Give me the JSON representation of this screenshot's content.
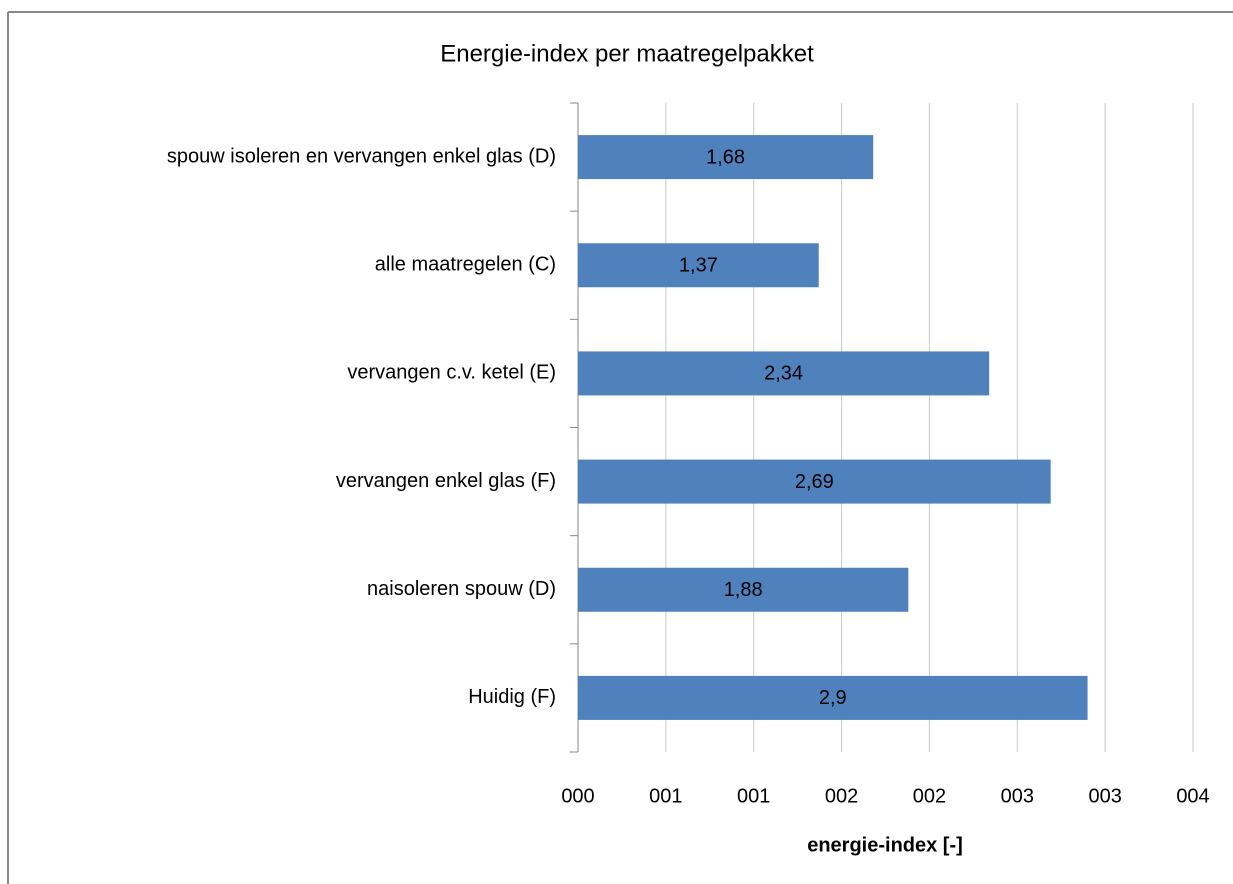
{
  "chart_data": {
    "type": "barh",
    "title": "Energie-index per maatregelpakket",
    "x_label": "energie-index [-]",
    "categories": [
      "spouw isoleren en vervangen enkel glas (D)",
      "alle maatregelen (C)",
      "vervangen c.v. ketel (E)",
      "vervangen enkel glas (F)",
      "naisoleren spouw (D)",
      "Huidig (F)"
    ],
    "values": [
      1.68,
      1.37,
      2.34,
      2.69,
      1.88,
      2.9
    ],
    "value_labels": [
      "1,68",
      "1,37",
      "2,34",
      "2,69",
      "1,88",
      "2,9"
    ],
    "color": "#4f81bd",
    "xlim": [
      0,
      3.5
    ],
    "xticks": [
      {
        "value": 0,
        "label": "000"
      },
      {
        "value": 0.5,
        "label": "001"
      },
      {
        "value": 1,
        "label": "001"
      },
      {
        "value": 1.5,
        "label": "002"
      },
      {
        "value": 2,
        "label": "002"
      },
      {
        "value": 2.5,
        "label": "003"
      },
      {
        "value": 3,
        "label": "003"
      },
      {
        "value": 3.5,
        "label": "004"
      }
    ],
    "grid": true
  }
}
